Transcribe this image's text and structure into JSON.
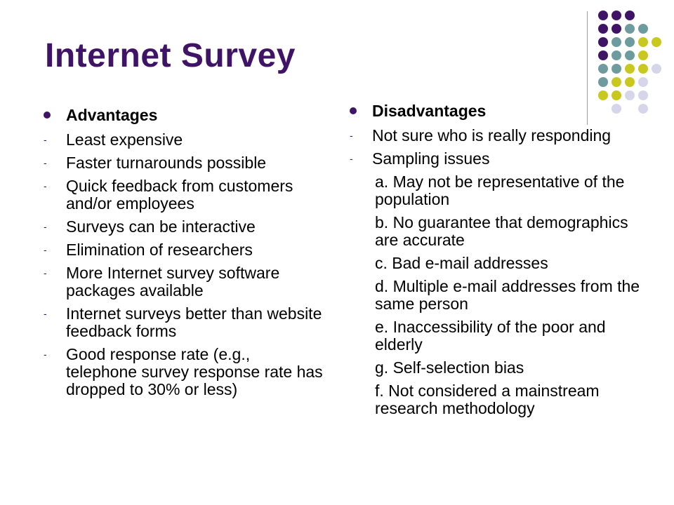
{
  "slide": {
    "title": "Internet Survey",
    "accent_colors": {
      "title": "#3f1467",
      "dot_purple": "#3f1467",
      "dot_teal": "#6e9c9e",
      "dot_olive": "#c8c81e",
      "dot_lavender": "#d7d5ea"
    },
    "left": {
      "heading": "Advantages",
      "items": [
        "Least expensive",
        "Faster turnarounds possible",
        "Quick feedback from customers and/or employees",
        "Surveys can be interactive",
        "Elimination of researchers",
        "More Internet survey software packages available",
        "Internet surveys better than website feedback forms",
        "Good response rate (e.g., telephone survey response rate has dropped to 30% or less)"
      ]
    },
    "right": {
      "heading": "Disadvantages",
      "items": [
        "Not sure who is really responding",
        "Sampling issues"
      ],
      "subitems": [
        "a. May not be representative of the population",
        "b. No guarantee that demographics are accurate",
        "c. Bad e-mail addresses",
        "d. Multiple e-mail addresses from the same person",
        "e. Inaccessibility of the poor and elderly",
        "g. Self-selection bias",
        "f. Not considered a mainstream research methodology"
      ]
    }
  }
}
